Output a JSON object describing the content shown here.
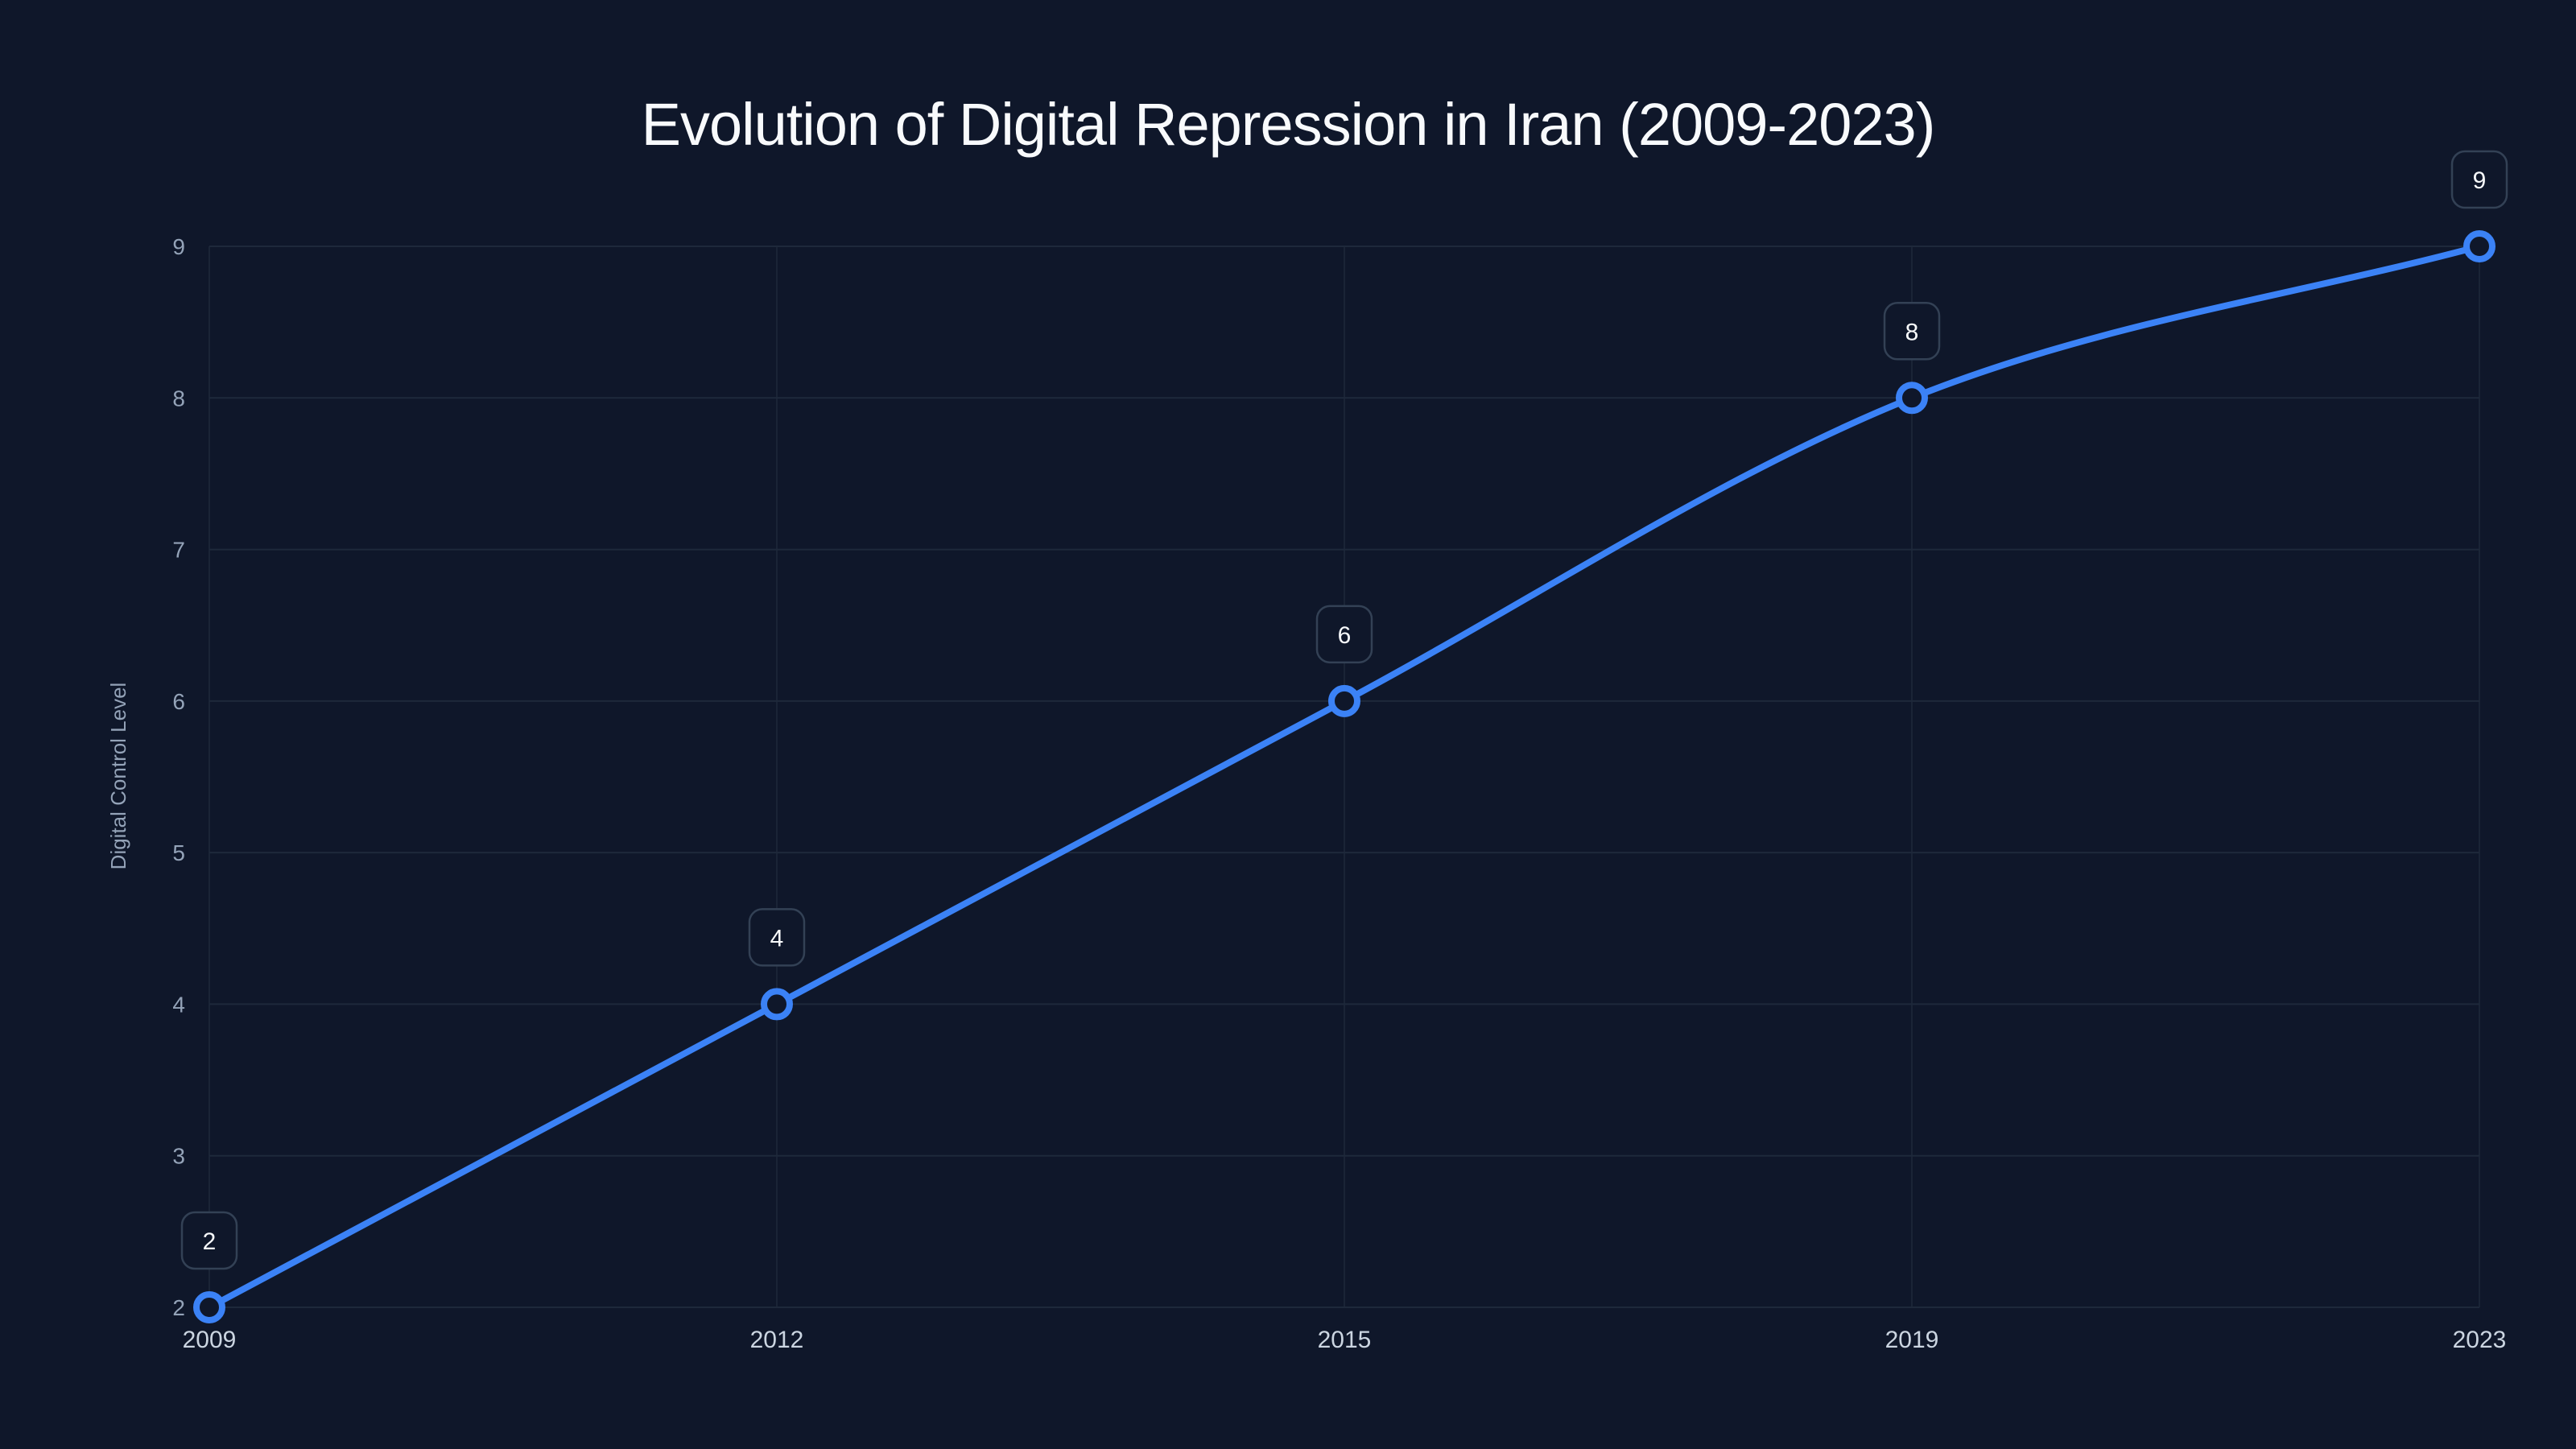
{
  "page": {
    "background": "#0f172a",
    "title": "Evolution of Digital Repression in Iran (2009-2023)"
  },
  "chart_data": {
    "type": "line",
    "title": "Evolution of Digital Repression in Iran (2009-2023)",
    "xlabel": "",
    "ylabel": "Digital Control Level",
    "categories": [
      "2009",
      "2012",
      "2015",
      "2019",
      "2023"
    ],
    "series": [
      {
        "name": "Digital Control Level",
        "values": [
          2,
          4,
          6,
          8,
          9
        ],
        "color": "#3b82f6"
      }
    ],
    "ylim": [
      2,
      9
    ],
    "yticks": [
      2,
      3,
      4,
      5,
      6,
      7,
      8,
      9
    ],
    "grid": true,
    "data_labels": true,
    "curve": "monotone",
    "legend": "none"
  },
  "colors": {
    "line": "#3b82f6",
    "grid": "#1e293b",
    "label_border": "#334155",
    "text": "#f8fafc",
    "axis_text": "#94a3b8"
  }
}
